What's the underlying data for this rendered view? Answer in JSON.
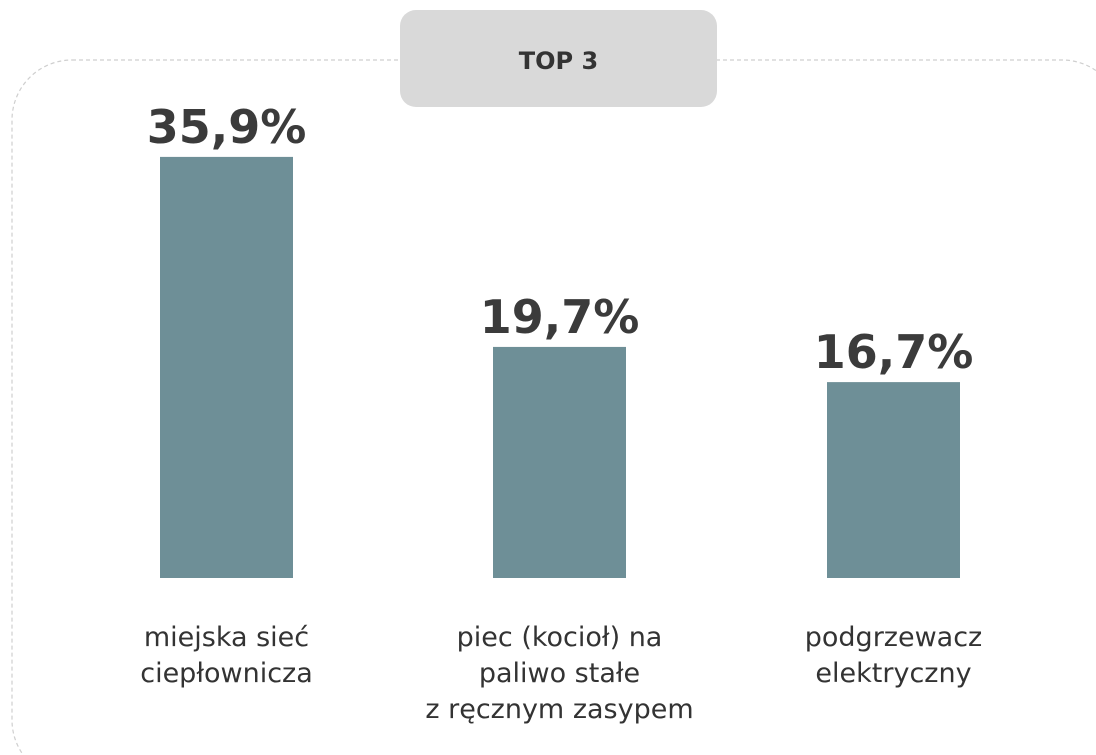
{
  "chart_data": {
    "type": "bar",
    "title": "TOP 3",
    "categories": [
      "miejska sieć\nciepłownicza",
      "piec (kocioł) na\npaliwo stałe\nz ręcznym zasypem",
      "podgrzewacz\nelektryczny"
    ],
    "values": [
      35.9,
      19.7,
      16.7
    ],
    "value_labels": [
      "35,9%",
      "19,7%",
      "16,7%"
    ],
    "color": "#6e8f97"
  }
}
